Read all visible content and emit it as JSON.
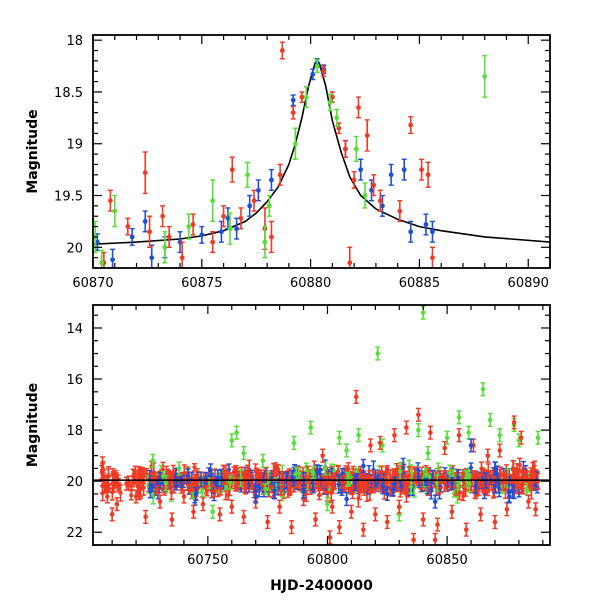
{
  "chart_data": [
    {
      "type": "scatter",
      "ylabel": "Magnitude",
      "xlabel": "",
      "xlim": [
        60870,
        60891
      ],
      "ylim": [
        20.2,
        17.95
      ],
      "y_inverted": true,
      "xticks": [
        60870,
        60875,
        60880,
        60885,
        60890
      ],
      "yticks": [
        18,
        18.5,
        19,
        19.5,
        20
      ],
      "xtick_labels": [
        "60870",
        "60875",
        "60880",
        "60885",
        "60890"
      ],
      "ytick_labels": [
        "18",
        "18.5",
        "19",
        "19.5",
        "20"
      ],
      "colors": {
        "blue": "#1e4fd8",
        "red": "#f03a24",
        "green": "#55e035",
        "model": "#000000"
      },
      "model_curve": {
        "color": "#000000",
        "points": [
          [
            60870,
            19.97
          ],
          [
            60872,
            19.95
          ],
          [
            60874,
            19.92
          ],
          [
            60875,
            19.89
          ],
          [
            60876,
            19.84
          ],
          [
            60877,
            19.75
          ],
          [
            60877.5,
            19.67
          ],
          [
            60878,
            19.56
          ],
          [
            60878.5,
            19.42
          ],
          [
            60879,
            19.2
          ],
          [
            60879.3,
            19.0
          ],
          [
            60879.6,
            18.75
          ],
          [
            60879.9,
            18.45
          ],
          [
            60880.2,
            18.22
          ],
          [
            60880.4,
            18.22
          ],
          [
            60880.7,
            18.45
          ],
          [
            60881,
            18.78
          ],
          [
            60881.4,
            19.08
          ],
          [
            60881.8,
            19.32
          ],
          [
            60882.3,
            19.5
          ],
          [
            60883,
            19.63
          ],
          [
            60884,
            19.73
          ],
          [
            60885,
            19.8
          ],
          [
            60886,
            19.84
          ],
          [
            60888,
            19.9
          ],
          [
            60891,
            19.95
          ]
        ]
      },
      "series": [
        {
          "color_key": "blue",
          "points": [
            [
              60870.2,
              19.95,
              0.08
            ],
            [
              60870.9,
              20.12,
              0.1
            ],
            [
              60871.8,
              19.9,
              0.08
            ],
            [
              60872.4,
              19.75,
              0.1
            ],
            [
              60872.7,
              20.1,
              0.12
            ],
            [
              60873.3,
              20.0,
              0.1
            ],
            [
              60874.0,
              19.95,
              0.1
            ],
            [
              60875.0,
              19.88,
              0.08
            ],
            [
              60875.9,
              19.85,
              0.1
            ],
            [
              60876.2,
              19.72,
              0.1
            ],
            [
              60876.6,
              19.82,
              0.1
            ],
            [
              60877.2,
              19.6,
              0.1
            ],
            [
              60877.6,
              19.45,
              0.1
            ],
            [
              60878.2,
              19.35,
              0.1
            ],
            [
              60879.2,
              18.58,
              0.05
            ],
            [
              60880.1,
              18.33,
              0.05
            ],
            [
              60880.3,
              18.22,
              0.04
            ],
            [
              60880.6,
              18.28,
              0.04
            ],
            [
              60881.6,
              19.05,
              0.08
            ],
            [
              60882.3,
              19.25,
              0.1
            ],
            [
              60882.8,
              19.45,
              0.1
            ],
            [
              60883.3,
              19.6,
              0.1
            ],
            [
              60883.7,
              19.3,
              0.1
            ],
            [
              60884.3,
              19.25,
              0.1
            ],
            [
              60884.6,
              19.85,
              0.1
            ],
            [
              60885.3,
              19.78,
              0.1
            ],
            [
              60885.6,
              19.85,
              0.1
            ]
          ]
        },
        {
          "color_key": "red",
          "points": [
            [
              60870.5,
              20.15,
              0.1
            ],
            [
              60870.8,
              19.55,
              0.1
            ],
            [
              60871.6,
              19.8,
              0.08
            ],
            [
              60872.4,
              19.28,
              0.2
            ],
            [
              60872.6,
              19.85,
              0.15
            ],
            [
              60873.2,
              19.7,
              0.1
            ],
            [
              60873.5,
              19.9,
              0.1
            ],
            [
              60874.1,
              20.1,
              0.15
            ],
            [
              60874.6,
              19.78,
              0.1
            ],
            [
              60875.5,
              19.95,
              0.1
            ],
            [
              60876.0,
              19.7,
              0.1
            ],
            [
              60876.4,
              19.25,
              0.12
            ],
            [
              60876.8,
              19.72,
              0.1
            ],
            [
              60877.4,
              19.55,
              0.1
            ],
            [
              60877.9,
              19.82,
              0.2
            ],
            [
              60878.2,
              19.9,
              0.15
            ],
            [
              60878.6,
              19.3,
              0.1
            ],
            [
              60878.7,
              18.1,
              0.08
            ],
            [
              60879.2,
              18.7,
              0.06
            ],
            [
              60879.6,
              18.55,
              0.05
            ],
            [
              60880.6,
              18.3,
              0.05
            ],
            [
              60881.0,
              18.55,
              0.05
            ],
            [
              60881.3,
              18.85,
              0.05
            ],
            [
              60881.6,
              19.05,
              0.08
            ],
            [
              60881.8,
              20.15,
              0.15
            ],
            [
              60882.0,
              19.35,
              0.08
            ],
            [
              60882.2,
              18.65,
              0.1
            ],
            [
              60882.6,
              18.92,
              0.15
            ],
            [
              60882.9,
              19.4,
              0.1
            ],
            [
              60883.2,
              19.55,
              0.1
            ],
            [
              60884.1,
              19.65,
              0.1
            ],
            [
              60884.6,
              18.82,
              0.08
            ],
            [
              60885.1,
              19.25,
              0.1
            ],
            [
              60885.4,
              19.3,
              0.12
            ],
            [
              60885.6,
              20.1,
              0.1
            ]
          ]
        },
        {
          "color_key": "green",
          "points": [
            [
              60870.1,
              19.9,
              0.15
            ],
            [
              60870.4,
              20.15,
              0.12
            ],
            [
              60871.0,
              19.65,
              0.15
            ],
            [
              60873.3,
              20.0,
              0.15
            ],
            [
              60874.4,
              19.8,
              0.12
            ],
            [
              60875.5,
              19.55,
              0.2
            ],
            [
              60876.3,
              19.82,
              0.15
            ],
            [
              60877.1,
              19.3,
              0.12
            ],
            [
              60877.9,
              19.95,
              0.15
            ],
            [
              60878.1,
              19.6,
              0.1
            ],
            [
              60879.3,
              19.0,
              0.15
            ],
            [
              60879.8,
              18.55,
              0.1
            ],
            [
              60880.3,
              18.25,
              0.06
            ],
            [
              60880.9,
              18.6,
              0.08
            ],
            [
              60881.2,
              18.75,
              0.08
            ],
            [
              60882.1,
              19.05,
              0.12
            ],
            [
              60882.5,
              19.5,
              0.12
            ],
            [
              60888.0,
              18.35,
              0.2
            ]
          ]
        }
      ]
    },
    {
      "type": "scatter",
      "ylabel": "Magnitude",
      "xlabel": "HJD-2400000",
      "xlim": [
        60702,
        60893
      ],
      "ylim": [
        22.5,
        13.1
      ],
      "y_inverted": true,
      "xticks": [
        60750,
        60800,
        60850
      ],
      "yticks": [
        14,
        16,
        18,
        20,
        22
      ],
      "xtick_labels": [
        "60750",
        "60800",
        "60850"
      ],
      "ytick_labels": [
        "14",
        "16",
        "18",
        "20",
        "22"
      ],
      "colors": {
        "blue": "#1e4fd8",
        "red": "#f03a24",
        "green": "#55e035",
        "model": "#000000"
      },
      "model_line": {
        "color": "#000000",
        "x": [
          60702,
          60893
        ],
        "y": 19.96
      },
      "dense_band": {
        "center": 20.0,
        "spread": 0.35,
        "x_start": 60705,
        "x_end": 60888
      },
      "outliers": {
        "green": [
          [
            60727,
            19.2
          ],
          [
            60738,
            19.5
          ],
          [
            60760,
            18.4
          ],
          [
            60762,
            18.1
          ],
          [
            60765,
            18.9
          ],
          [
            60773,
            19.2
          ],
          [
            60786,
            18.5
          ],
          [
            60793,
            17.9
          ],
          [
            60799,
            19.5
          ],
          [
            60805,
            18.3
          ],
          [
            60808,
            18.8
          ],
          [
            60813,
            18.2
          ],
          [
            60821,
            15.0
          ],
          [
            60823,
            18.6
          ],
          [
            60838,
            18.0
          ],
          [
            60840,
            13.4
          ],
          [
            60842,
            18.9
          ],
          [
            60850,
            18.3
          ],
          [
            60855,
            17.5
          ],
          [
            60859,
            18.1
          ],
          [
            60865,
            16.4
          ],
          [
            60868,
            17.6
          ],
          [
            60872,
            18.2
          ],
          [
            60878,
            17.8
          ],
          [
            60880,
            18.4
          ],
          [
            60888,
            18.3
          ],
          [
            60752,
            21.2
          ],
          [
            60800,
            20.9
          ],
          [
            60830,
            21.3
          ]
        ],
        "red": [
          [
            60706,
            19.3
          ],
          [
            60708,
            20.6
          ],
          [
            60710,
            21.3
          ],
          [
            60712,
            20.9
          ],
          [
            60716,
            20.1
          ],
          [
            60720,
            20.6
          ],
          [
            60724,
            21.4
          ],
          [
            60730,
            20.8
          ],
          [
            60735,
            21.5
          ],
          [
            60740,
            20.6
          ],
          [
            60744,
            21.2
          ],
          [
            60748,
            20.9
          ],
          [
            60755,
            21.3
          ],
          [
            60760,
            21.0
          ],
          [
            60765,
            21.4
          ],
          [
            60770,
            20.8
          ],
          [
            60775,
            21.6
          ],
          [
            60780,
            21.0
          ],
          [
            60785,
            21.8
          ],
          [
            60790,
            20.7
          ],
          [
            60795,
            21.5
          ],
          [
            60798,
            19.0
          ],
          [
            60802,
            21.0
          ],
          [
            60805,
            21.8
          ],
          [
            60810,
            21.2
          ],
          [
            60812,
            16.7
          ],
          [
            60815,
            21.9
          ],
          [
            60818,
            18.6
          ],
          [
            60820,
            21.3
          ],
          [
            60822,
            18.5
          ],
          [
            60825,
            21.6
          ],
          [
            60828,
            18.2
          ],
          [
            60830,
            21.0
          ],
          [
            60833,
            17.9
          ],
          [
            60836,
            22.3
          ],
          [
            60838,
            17.4
          ],
          [
            60840,
            21.5
          ],
          [
            60843,
            18.1
          ],
          [
            60846,
            21.7
          ],
          [
            60849,
            18.7
          ],
          [
            60852,
            21.2
          ],
          [
            60855,
            18.2
          ],
          [
            60858,
            21.9
          ],
          [
            60861,
            18.6
          ],
          [
            60864,
            21.3
          ],
          [
            60867,
            19.0
          ],
          [
            60870,
            21.6
          ],
          [
            60872,
            18.8
          ],
          [
            60875,
            21.1
          ],
          [
            60878,
            17.7
          ],
          [
            60881,
            18.3
          ],
          [
            60884,
            20.8
          ],
          [
            60887,
            21.1
          ],
          [
            60801,
            22.2
          ],
          [
            60845,
            22.3
          ]
        ],
        "blue": [
          [
            60726,
            20.4
          ],
          [
            60745,
            20.5
          ],
          [
            60770,
            20.6
          ],
          [
            60790,
            20.4
          ],
          [
            60808,
            20.7
          ],
          [
            60815,
            19.4
          ],
          [
            60825,
            20.5
          ],
          [
            60845,
            20.8
          ],
          [
            60860,
            18.6
          ],
          [
            60870,
            19.5
          ],
          [
            60876,
            20.6
          ]
        ]
      }
    }
  ]
}
